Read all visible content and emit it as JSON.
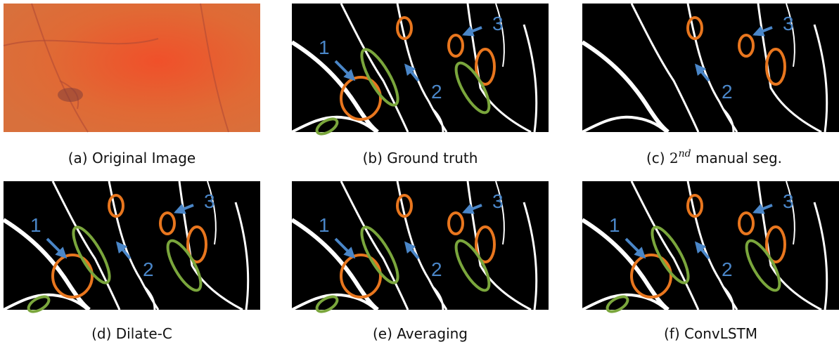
{
  "panels": [
    {
      "caption": "(a) Original Image"
    },
    {
      "caption": "(b) Ground truth",
      "labels": [
        "1",
        "2",
        "3"
      ]
    },
    {
      "caption": {
        "prefix": "(c) ",
        "math": "2",
        "sup": "nd",
        "suffix": " manual seg."
      },
      "labels": [
        "2",
        "3"
      ]
    },
    {
      "caption": "(d) Dilate-C",
      "labels": [
        "1",
        "2",
        "3"
      ]
    },
    {
      "caption": "(e) Averaging",
      "labels": [
        "1",
        "2",
        "3"
      ]
    },
    {
      "caption": "(f) ConvLSTM",
      "labels": [
        "1",
        "2",
        "3"
      ]
    }
  ]
}
